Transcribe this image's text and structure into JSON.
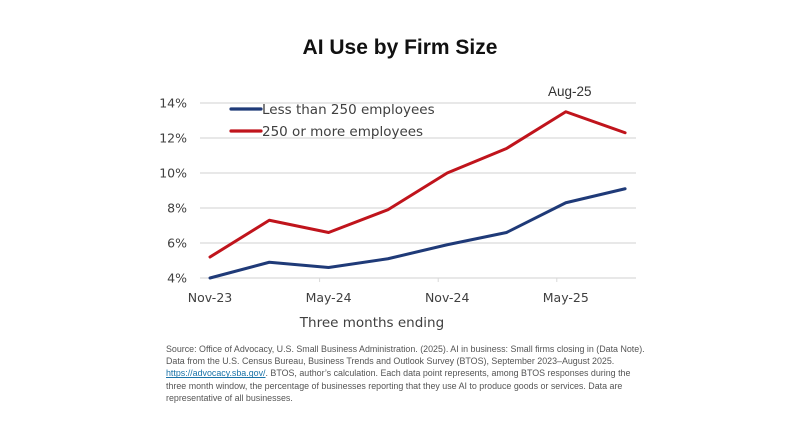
{
  "chart_data": {
    "type": "line",
    "title": "AI Use by Firm Size",
    "xlabel": "Three months ending",
    "ylabel": "",
    "x": [
      "Nov-23",
      "Feb-24",
      "May-24",
      "Aug-24",
      "Nov-24",
      "Feb-25",
      "May-25",
      "Aug-25"
    ],
    "x_tick_labels": [
      "Nov-23",
      "May-24",
      "Nov-24",
      "May-25"
    ],
    "y_ticks": [
      4,
      6,
      8,
      10,
      12,
      14
    ],
    "y_tick_format": "{v}%",
    "ylim": [
      4,
      14
    ],
    "grid": true,
    "legend_position": "top-left",
    "series": [
      {
        "name": "Less than 250 employees",
        "color": "#1f3a78",
        "values": [
          4.0,
          4.9,
          4.6,
          5.1,
          5.9,
          6.6,
          8.3,
          9.1
        ]
      },
      {
        "name": "250 or more employees",
        "color": "#c0141c",
        "values": [
          5.2,
          7.3,
          6.6,
          7.9,
          10.0,
          11.4,
          13.5,
          12.3
        ]
      }
    ],
    "annotations": [
      {
        "text": "Aug-25",
        "x": "May-25",
        "series": "250 or more employees"
      }
    ]
  },
  "source": {
    "before_link": "Source: Office of Advocacy, U.S. Small Business Administration. (2025). AI in business: Small firms closing in (Data Note). Data from the U.S. Census Bureau, Business Trends and Outlook Survey (BTOS), September 2023–August 2025. ",
    "link_text": "https://advocacy.sba.gov/",
    "after_link": ". BTOS, author’s calculation. Each data point represents, among BTOS responses during the three month window, the percentage of businesses reporting that they use AI to produce goods or services.  Data are representative of all businesses."
  }
}
